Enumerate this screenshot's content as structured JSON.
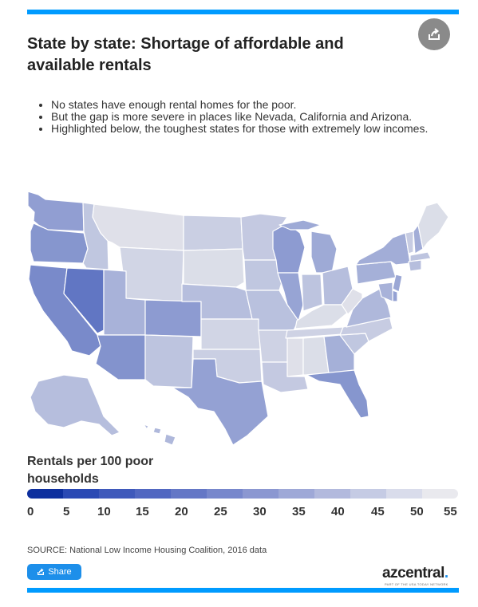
{
  "header": {
    "title": "State by state: Shortage of affordable and available rentals",
    "share_icon": "share-arrow-icon"
  },
  "bullets": [
    "No states have enough rental homes for the poor.",
    "But the gap is more severe in places like Nevada, California and Arizona.",
    "Highlighted below, the toughest states for those with extremely low incomes."
  ],
  "legend": {
    "title": "Rentals per 100 poor households",
    "labels": [
      "0",
      "5",
      "10",
      "15",
      "20",
      "25",
      "30",
      "35",
      "40",
      "45",
      "50",
      "55"
    ],
    "colors": [
      "#0d2f9e",
      "#2a49b4",
      "#3f59bb",
      "#5167c1",
      "#6477c6",
      "#7787cc",
      "#8b97d1",
      "#9ea8d7",
      "#b2b9dd",
      "#c5cbe4",
      "#d9dceb",
      "#e9e9ee"
    ]
  },
  "map": {
    "fill_scale": {
      "low": "#2e4bb4",
      "high": "#e9e9ec"
    },
    "states": [
      {
        "abbr": "WA",
        "value": 29
      },
      {
        "abbr": "OR",
        "value": 26
      },
      {
        "abbr": "CA",
        "value": 22
      },
      {
        "abbr": "NV",
        "value": 15
      },
      {
        "abbr": "ID",
        "value": 43
      },
      {
        "abbr": "MT",
        "value": 52
      },
      {
        "abbr": "WY",
        "value": 48
      },
      {
        "abbr": "UT",
        "value": 36
      },
      {
        "abbr": "AZ",
        "value": 25
      },
      {
        "abbr": "CO",
        "value": 28
      },
      {
        "abbr": "NM",
        "value": 42
      },
      {
        "abbr": "ND",
        "value": 46
      },
      {
        "abbr": "SD",
        "value": 51
      },
      {
        "abbr": "NE",
        "value": 40
      },
      {
        "abbr": "KS",
        "value": 48
      },
      {
        "abbr": "OK",
        "value": 46
      },
      {
        "abbr": "TX",
        "value": 30
      },
      {
        "abbr": "MN",
        "value": 44
      },
      {
        "abbr": "IA",
        "value": 43
      },
      {
        "abbr": "MO",
        "value": 41
      },
      {
        "abbr": "AR",
        "value": 47
      },
      {
        "abbr": "LA",
        "value": 44
      },
      {
        "abbr": "WI",
        "value": 28
      },
      {
        "abbr": "IL",
        "value": 31
      },
      {
        "abbr": "MI",
        "value": 33
      },
      {
        "abbr": "IN",
        "value": 42
      },
      {
        "abbr": "OH",
        "value": 40
      },
      {
        "abbr": "KY",
        "value": 51
      },
      {
        "abbr": "TN",
        "value": 47
      },
      {
        "abbr": "MS",
        "value": 52
      },
      {
        "abbr": "AL",
        "value": 51
      },
      {
        "abbr": "GA",
        "value": 35
      },
      {
        "abbr": "FL",
        "value": 26
      },
      {
        "abbr": "SC",
        "value": 43
      },
      {
        "abbr": "NC",
        "value": 45
      },
      {
        "abbr": "VA",
        "value": 38
      },
      {
        "abbr": "WV",
        "value": 52
      },
      {
        "abbr": "PA",
        "value": 35
      },
      {
        "abbr": "NY",
        "value": 34
      },
      {
        "abbr": "VT",
        "value": 45
      },
      {
        "abbr": "NH",
        "value": 34
      },
      {
        "abbr": "ME",
        "value": 51
      },
      {
        "abbr": "MA",
        "value": 42
      },
      {
        "abbr": "CT",
        "value": 40
      },
      {
        "abbr": "NJ",
        "value": 32
      },
      {
        "abbr": "DE",
        "value": 30
      },
      {
        "abbr": "MD",
        "value": 36
      },
      {
        "abbr": "AK",
        "value": 40
      },
      {
        "abbr": "HI",
        "value": 38
      }
    ]
  },
  "source": "SOURCE: National Low Income Housing Coalition, 2016 data",
  "share_button": {
    "label": "Share",
    "icon": "share-arrow-icon"
  },
  "brand": {
    "name": "azcentral",
    "dot": ".",
    "tagline": "PART OF THE USA TODAY NETWORK"
  }
}
